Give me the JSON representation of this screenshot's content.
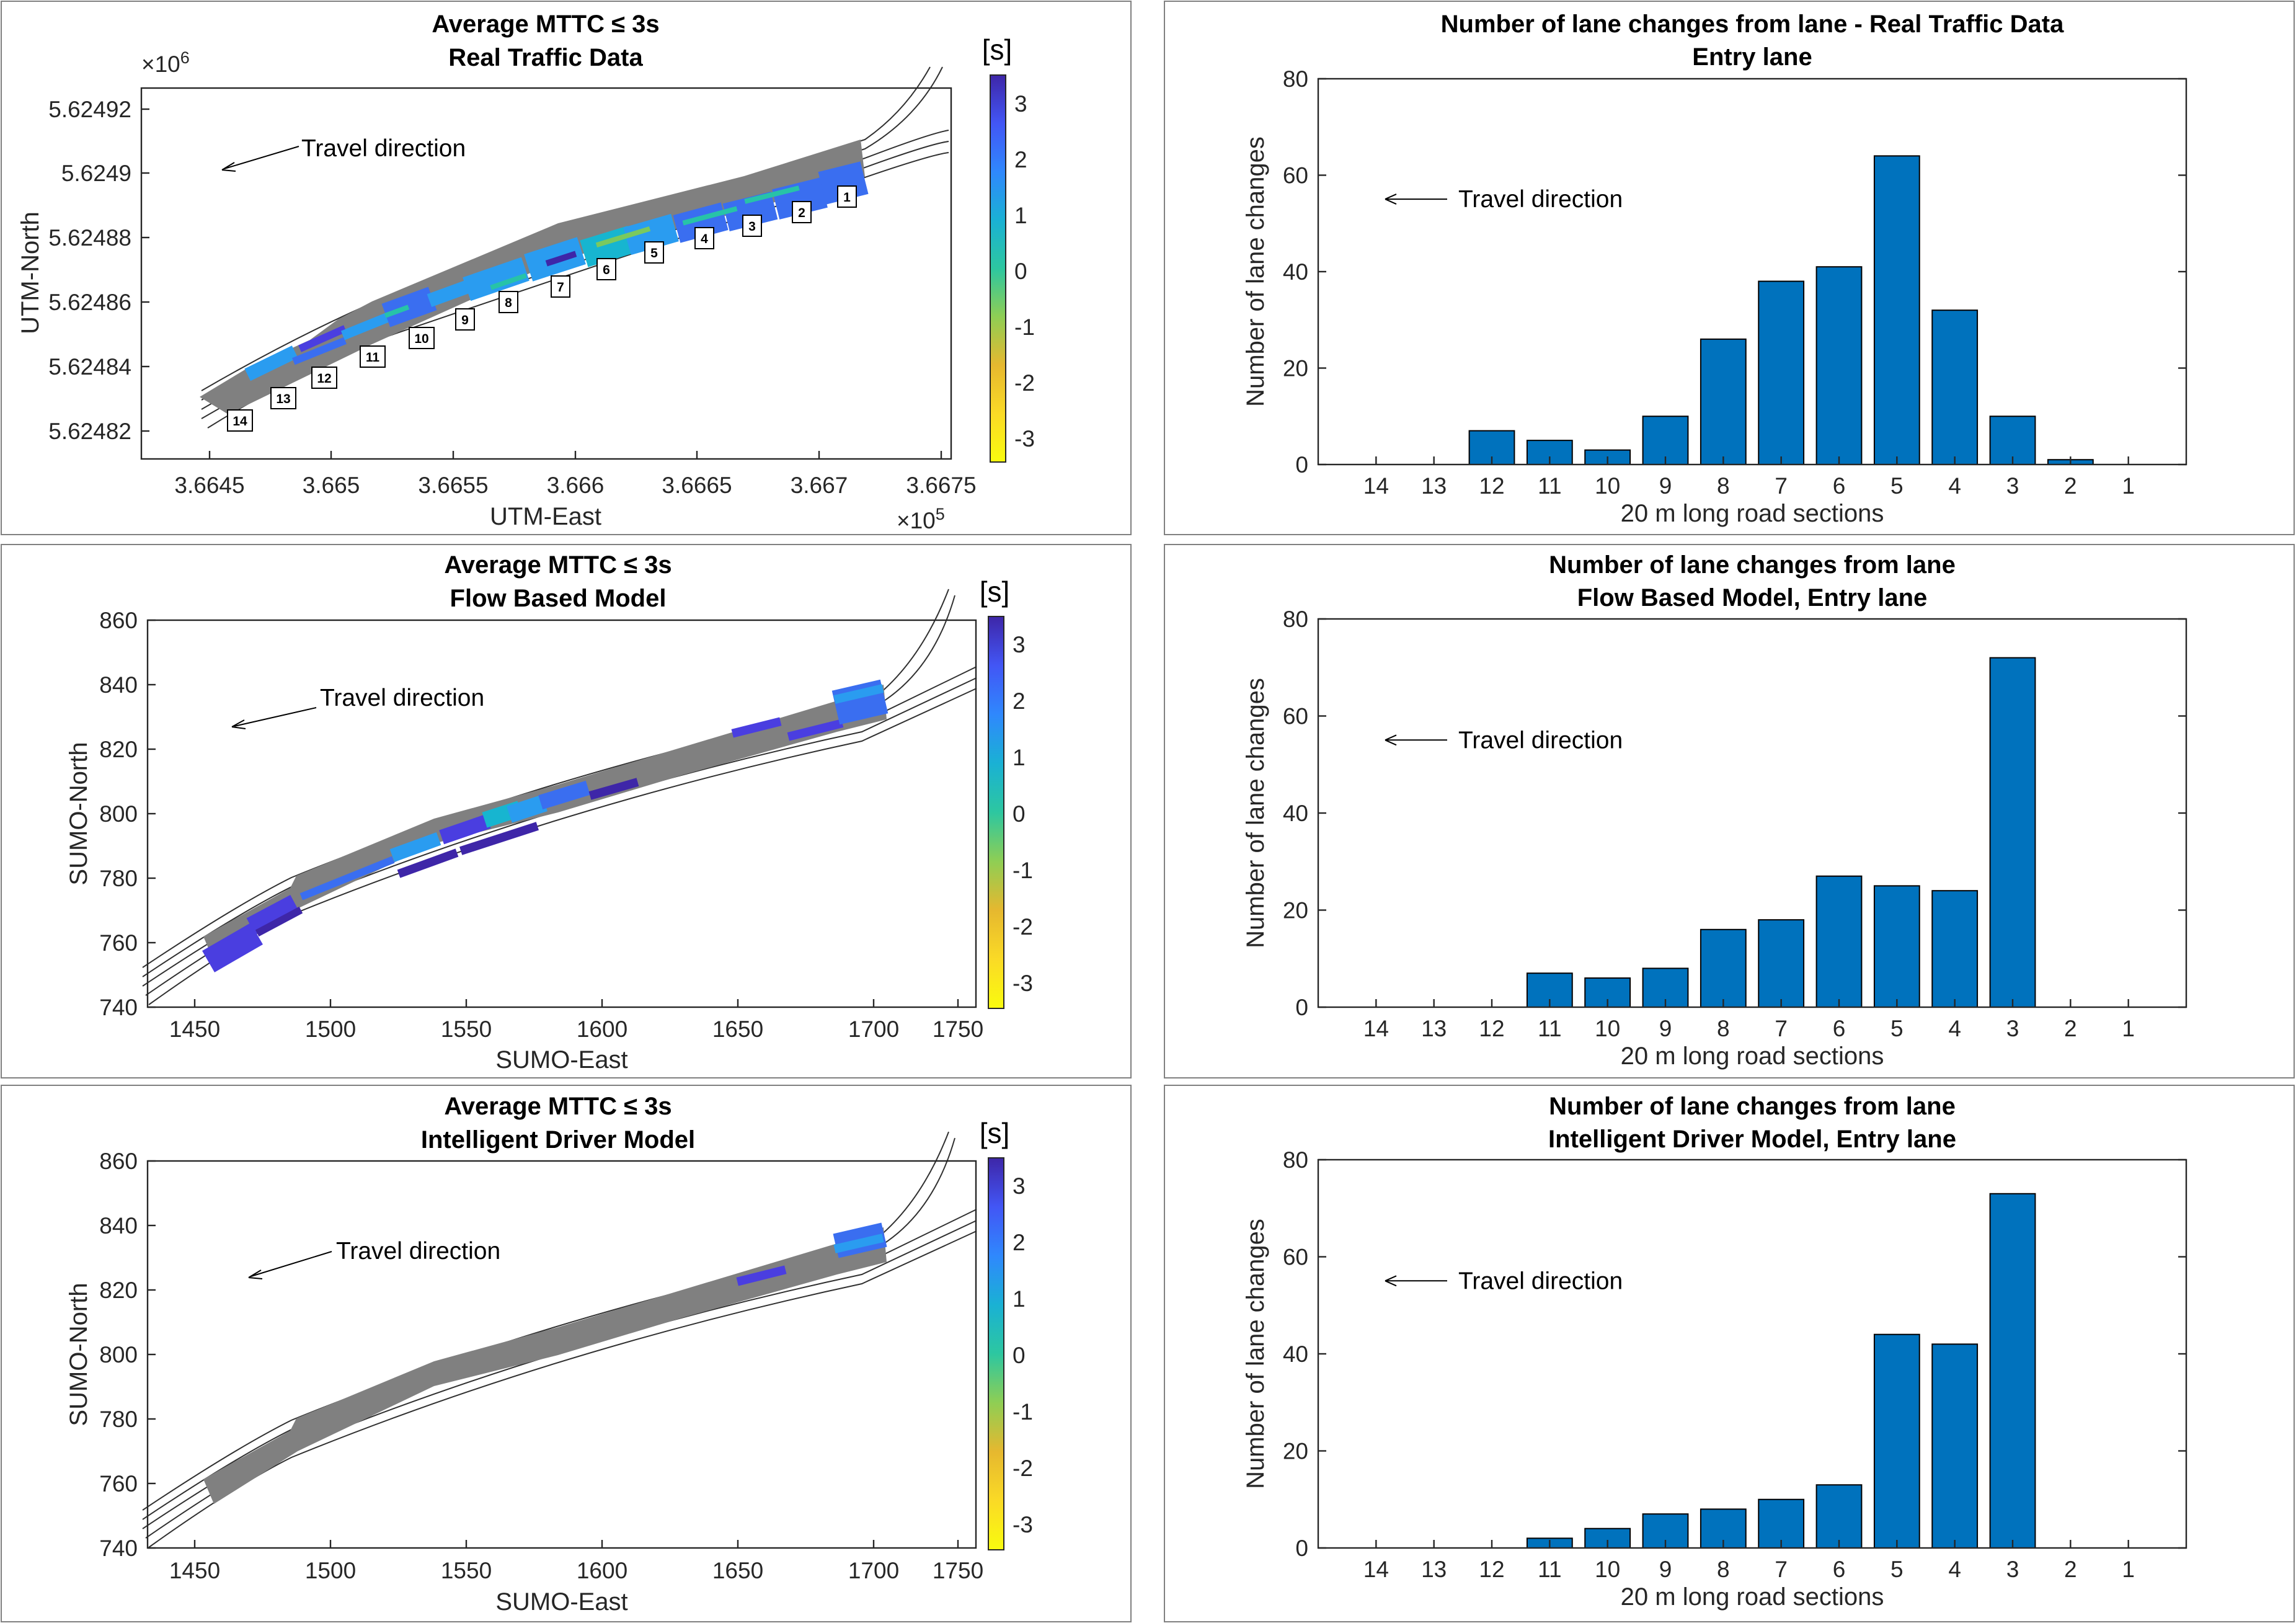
{
  "colorbar": {
    "unit_label": "[s]",
    "ticks": [
      "3",
      "2",
      "1",
      "0",
      "-1",
      "-2",
      "-3"
    ],
    "stops": [
      "#3e26a8",
      "#4256f5",
      "#2f88fd",
      "#1ab1d4",
      "#2dc7a0",
      "#8fce54",
      "#e6b82f",
      "#fada26",
      "#f9fb0e"
    ]
  },
  "road_colors": {
    "gray": "#808080",
    "deep": "#3e26a8",
    "violet": "#4a3ee0",
    "blue": "#3a6ef0",
    "sky": "#2a9cf0",
    "cyan": "#17b5d0",
    "teal": "#27c3a8",
    "green": "#7ac95e"
  },
  "map_panels": [
    {
      "title_1": "Average MTTC ≤ 3s",
      "title_2": "Real Traffic Data",
      "xlabel": "UTM-East",
      "ylabel": "UTM-North",
      "x_exponent": "×10",
      "x_exponent_power": "5",
      "y_exponent": "×10",
      "y_exponent_power": "6",
      "xticks": [
        "3.6645",
        "3.665",
        "3.6655",
        "3.666",
        "3.6665",
        "3.667",
        "3.6675"
      ],
      "yticks": [
        "5.62492",
        "5.6249",
        "5.62488",
        "5.62486",
        "5.62484",
        "5.62482"
      ],
      "annotation": "Travel direction",
      "section_labels": [
        "1",
        "2",
        "3",
        "4",
        "5",
        "6",
        "7",
        "8",
        "9",
        "10",
        "11",
        "12",
        "13",
        "14"
      ]
    },
    {
      "title_1": "Average MTTC ≤ 3s",
      "title_2": "Flow Based Model",
      "xlabel": "SUMO-East",
      "ylabel": "SUMO-North",
      "xticks": [
        "1450",
        "1500",
        "1550",
        "1600",
        "1650",
        "1700",
        "1750"
      ],
      "yticks": [
        "860",
        "840",
        "820",
        "800",
        "780",
        "760",
        "740"
      ],
      "annotation": "Travel direction"
    },
    {
      "title_1": "Average MTTC ≤ 3s",
      "title_2": "Intelligent Driver Model",
      "xlabel": "SUMO-East",
      "ylabel": "SUMO-North",
      "xticks": [
        "1450",
        "1500",
        "1550",
        "1600",
        "1650",
        "1700",
        "1750"
      ],
      "yticks": [
        "860",
        "840",
        "820",
        "800",
        "780",
        "760",
        "740"
      ],
      "annotation": "Travel direction"
    }
  ],
  "chart_data": [
    {
      "type": "bar",
      "title": "Number of lane changes from lane - Real Traffic Data",
      "subtitle": "Entry lane",
      "xlabel": "20 m long road sections",
      "ylabel": "Number of lane changes",
      "annotation": "Travel direction",
      "categories": [
        "14",
        "13",
        "12",
        "11",
        "10",
        "9",
        "8",
        "7",
        "6",
        "5",
        "4",
        "3",
        "2",
        "1"
      ],
      "values": [
        0,
        0,
        7,
        5,
        3,
        10,
        26,
        38,
        41,
        64,
        32,
        10,
        1,
        0
      ],
      "ylim": [
        0,
        80
      ],
      "yticks": [
        "0",
        "20",
        "40",
        "60",
        "80"
      ]
    },
    {
      "type": "bar",
      "title": "Number of lane changes from lane",
      "subtitle": "Flow Based Model, Entry lane",
      "xlabel": "20 m long road sections",
      "ylabel": "Number of lane changes",
      "annotation": "Travel direction",
      "categories": [
        "14",
        "13",
        "12",
        "11",
        "10",
        "9",
        "8",
        "7",
        "6",
        "5",
        "4",
        "3",
        "2",
        "1"
      ],
      "values": [
        0,
        0,
        0,
        7,
        6,
        8,
        16,
        18,
        27,
        25,
        24,
        72,
        0,
        0
      ],
      "ylim": [
        0,
        80
      ],
      "yticks": [
        "0",
        "20",
        "40",
        "60",
        "80"
      ]
    },
    {
      "type": "bar",
      "title": "Number of lane changes from lane",
      "subtitle": "Intelligent Driver Model, Entry lane",
      "xlabel": "20 m long road sections",
      "ylabel": "Number of lane changes",
      "annotation": "Travel direction",
      "categories": [
        "14",
        "13",
        "12",
        "11",
        "10",
        "9",
        "8",
        "7",
        "6",
        "5",
        "4",
        "3",
        "2",
        "1"
      ],
      "values": [
        0,
        0,
        0,
        2,
        4,
        7,
        8,
        10,
        13,
        44,
        42,
        73,
        0,
        0
      ],
      "ylim": [
        0,
        80
      ],
      "yticks": [
        "0",
        "20",
        "40",
        "60",
        "80"
      ]
    }
  ]
}
